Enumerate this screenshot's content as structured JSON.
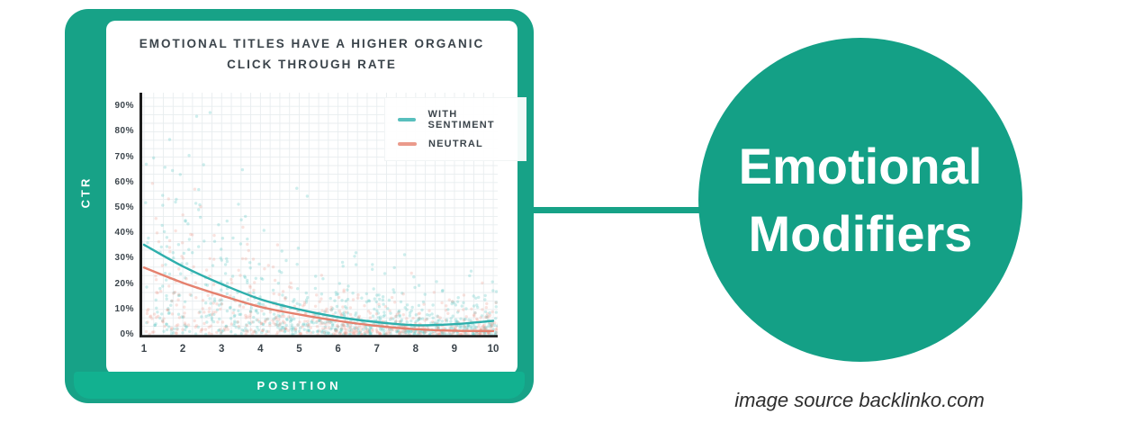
{
  "colors": {
    "frame_green": "#17A287",
    "band_green": "#12B190",
    "circle_green": "#14A086",
    "connector_green": "#17A287",
    "teal_line": "#2EAFAC",
    "salmon_line": "#E5816E",
    "teal_scatter": "#4FC2C0",
    "salmon_scatter": "#EC9B8B",
    "title_text": "#3B444B",
    "axis_text": "#3B444B",
    "grid": "#E8EDEF",
    "axis_line": "#1C1C1C",
    "white": "#FFFFFF",
    "source_text": "#2E2E2E"
  },
  "card": {
    "y_axis_title": "CTR",
    "x_axis_title": "POSITION"
  },
  "chart_data": {
    "type": "scatter",
    "title_line1": "EMOTIONAL TITLES HAVE A HIGHER ORGANIC",
    "title_line2": "CLICK THROUGH RATE",
    "xlabel": "POSITION",
    "ylabel": "CTR",
    "x_ticks": [
      "1",
      "2",
      "3",
      "4",
      "5",
      "6",
      "7",
      "8",
      "9",
      "10"
    ],
    "y_ticks": [
      "90%",
      "80%",
      "70%",
      "60%",
      "50%",
      "40%",
      "30%",
      "20%",
      "10%",
      "0%"
    ],
    "xlim": [
      1,
      10
    ],
    "ylim_pct": [
      0,
      95
    ],
    "grid": true,
    "legend_position": "upper right",
    "series": [
      {
        "name": "WITH SENTIMENT",
        "color_key": "teal_line",
        "x": [
          1,
          2,
          3,
          4,
          5,
          6,
          7,
          8,
          9,
          10
        ],
        "values_pct": [
          35.5,
          27,
          20,
          14,
          10,
          7,
          5,
          3.8,
          4.2,
          5.5
        ]
      },
      {
        "name": "NEUTRAL",
        "color_key": "salmon_line",
        "x": [
          1,
          2,
          3,
          4,
          5,
          6,
          7,
          8,
          9,
          10
        ],
        "values_pct": [
          26.5,
          20.5,
          15.5,
          11,
          8,
          5.5,
          3.5,
          2.2,
          1.6,
          1.5
        ]
      }
    ],
    "scatter": {
      "description": "dense semi-transparent point cloud; CTR decays with position; teal (with sentiment) sits above salmon (neutral)",
      "seed": 42,
      "point_radius": 1.7,
      "opacity": 0.28,
      "groups": [
        {
          "color_key": "teal_scatter",
          "count": 780,
          "amp": 26,
          "decay": 2.6,
          "base": 4.2
        },
        {
          "color_key": "salmon_scatter",
          "count": 560,
          "amp": 21,
          "decay": 2.6,
          "base": 3.2
        }
      ]
    }
  },
  "callout": {
    "line1": "Emotional",
    "line2": "Modifiers"
  },
  "source": {
    "text": "image source backlinko.com"
  }
}
